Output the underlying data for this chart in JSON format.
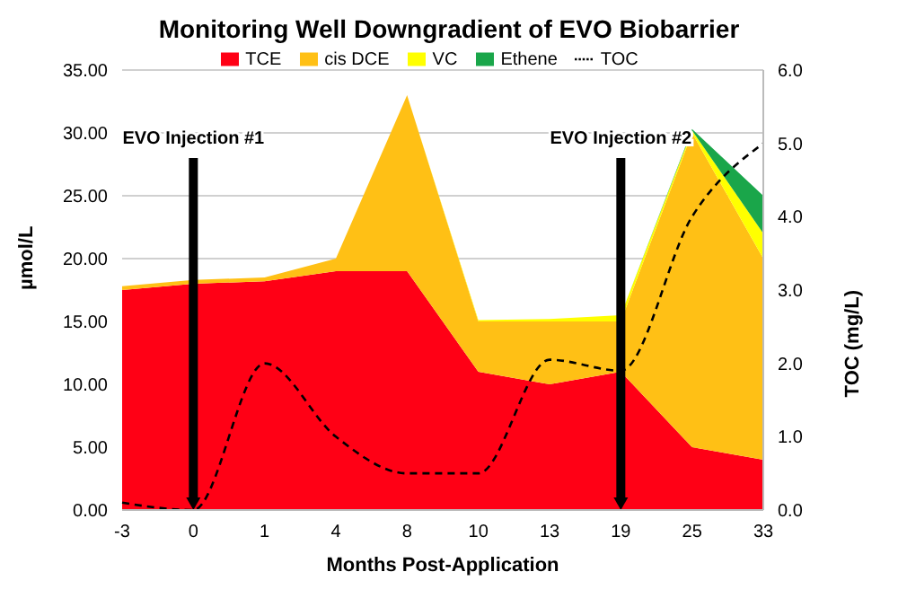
{
  "chart_data": {
    "type": "area",
    "stacked": true,
    "title": "Monitoring Well Downgradient of EVO Biobarrier",
    "xlabel": "Months Post-Application",
    "ylabel": "µmol/L",
    "y2label": "TOC (mg/L)",
    "categories": [
      "-3",
      "0",
      "1",
      "4",
      "8",
      "10",
      "13",
      "19",
      "25",
      "33"
    ],
    "series": [
      {
        "name": "TCE",
        "color": "#ff0015",
        "values": [
          17.5,
          18,
          18.2,
          19,
          19,
          11,
          10,
          11,
          5,
          4
        ]
      },
      {
        "name": "cis DCE",
        "color": "#ffc015",
        "values": [
          0.3,
          0.3,
          0.3,
          1,
          14,
          4,
          5,
          4,
          25,
          16
        ]
      },
      {
        "name": "VC",
        "color": "#ffff00",
        "values": [
          0,
          0,
          0,
          0,
          0,
          0.1,
          0.2,
          0.5,
          0.2,
          2
        ]
      },
      {
        "name": "Ethene",
        "color": "#1aa64a",
        "values": [
          null,
          null,
          null,
          null,
          null,
          null,
          null,
          0,
          0.1,
          3
        ]
      },
      {
        "name": "TOC",
        "type": "line",
        "axis": "y2",
        "color": "#000000",
        "line_style": "dashed",
        "marker": "none",
        "values": [
          0.1,
          0,
          2,
          1,
          0.5,
          0.5,
          2.05,
          1.9,
          4,
          5
        ]
      }
    ],
    "ylim": [
      0,
      35
    ],
    "yticks": [
      {
        "value": 0,
        "label": "0.00"
      },
      {
        "value": 5,
        "label": "5.00"
      },
      {
        "value": 10,
        "label": "10.00"
      },
      {
        "value": 15,
        "label": "15.00"
      },
      {
        "value": 20,
        "label": "20.00"
      },
      {
        "value": 25,
        "label": "25.00"
      },
      {
        "value": 30,
        "label": "30.00"
      },
      {
        "value": 35,
        "label": "35.00"
      }
    ],
    "y2lim": [
      0,
      6
    ],
    "y2ticks": [
      {
        "value": 0,
        "label": "0.0"
      },
      {
        "value": 1,
        "label": "1.0"
      },
      {
        "value": 2,
        "label": "2.0"
      },
      {
        "value": 3,
        "label": "3.0"
      },
      {
        "value": 4,
        "label": "4.0"
      },
      {
        "value": 5,
        "label": "5.0"
      },
      {
        "value": 6,
        "label": "6.0"
      }
    ],
    "ref_lines": [
      {
        "axis": "x",
        "value": "0",
        "label": "EVO Injection #1",
        "color": "#000000"
      },
      {
        "axis": "x",
        "value": "19",
        "label": "EVO Injection #2",
        "color": "#000000"
      }
    ],
    "grid": "y",
    "legend": "top"
  }
}
